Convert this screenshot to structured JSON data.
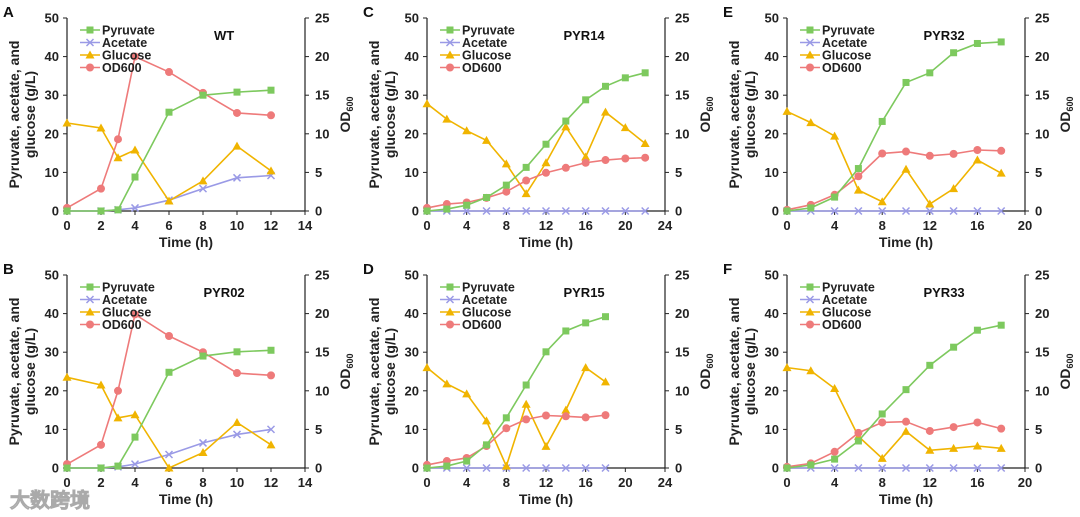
{
  "chart_data": [
    {
      "type": "line",
      "panel": "A",
      "title": "WT",
      "xlabel": "Time (h)",
      "ylabel": "Pyruvate, acetate, and glucose (g/L)",
      "y2label": "OD",
      "y2label_sub": "600",
      "xlim": [
        0,
        14
      ],
      "xticks": [
        0,
        2,
        4,
        6,
        8,
        10,
        12,
        14
      ],
      "ylim": [
        0,
        50
      ],
      "yticks": [
        0,
        10,
        20,
        30,
        40,
        50
      ],
      "y2lim": [
        0,
        25
      ],
      "y2ticks": [
        0,
        5,
        10,
        15,
        20,
        25
      ],
      "x": [
        0,
        2,
        3,
        4,
        6,
        8,
        10,
        12
      ],
      "series": [
        {
          "name": "Pyruvate",
          "axis": "left",
          "values": [
            0,
            0,
            0.3,
            8.8,
            25.6,
            30,
            30.8,
            31.3
          ]
        },
        {
          "name": "Acetate",
          "axis": "left",
          "values": [
            0,
            0,
            0.3,
            0.8,
            2.8,
            5.8,
            8.6,
            9.2
          ]
        },
        {
          "name": "Glucose",
          "axis": "left",
          "values": [
            22.8,
            21.5,
            13.8,
            15.8,
            2.6,
            7.8,
            16.8,
            10.4
          ]
        },
        {
          "name": "OD600",
          "axis": "right",
          "values": [
            0.4,
            2.9,
            9.3,
            20,
            18,
            15.3,
            12.7,
            12.4
          ]
        }
      ]
    },
    {
      "type": "line",
      "panel": "B",
      "title": "PYR02",
      "xlabel": "Time (h)",
      "ylabel": "Pyruvate, acetate, and glucose (g/L)",
      "y2label": "OD",
      "y2label_sub": "600",
      "xlim": [
        0,
        14
      ],
      "xticks": [
        0,
        2,
        4,
        6,
        8,
        10,
        12,
        14
      ],
      "ylim": [
        0,
        50
      ],
      "yticks": [
        0,
        10,
        20,
        30,
        40,
        50
      ],
      "y2lim": [
        0,
        25
      ],
      "y2ticks": [
        0,
        5,
        10,
        15,
        20,
        25
      ],
      "x": [
        0,
        2,
        3,
        4,
        6,
        8,
        10,
        12
      ],
      "series": [
        {
          "name": "Pyruvate",
          "axis": "left",
          "values": [
            0,
            0,
            0.5,
            8,
            24.8,
            29,
            30.1,
            30.5
          ]
        },
        {
          "name": "Acetate",
          "axis": "left",
          "values": [
            0,
            0,
            0.3,
            1,
            3.5,
            6.5,
            8.7,
            10
          ]
        },
        {
          "name": "Glucose",
          "axis": "left",
          "values": [
            23.5,
            21.5,
            13,
            13.8,
            0,
            4,
            11.8,
            6
          ]
        },
        {
          "name": "OD600",
          "axis": "right",
          "values": [
            0.5,
            3,
            10,
            19.9,
            17.1,
            15,
            12.3,
            12
          ]
        }
      ]
    },
    {
      "type": "line",
      "panel": "C",
      "title": "PYR14",
      "xlabel": "Time (h)",
      "ylabel": "Pyruvate, acetate, and glucose (g/L)",
      "y2label": "OD",
      "y2label_sub": "600",
      "xlim": [
        0,
        24
      ],
      "xticks": [
        0,
        4,
        8,
        12,
        16,
        20,
        24
      ],
      "ylim": [
        0,
        50
      ],
      "yticks": [
        0,
        10,
        20,
        30,
        40,
        50
      ],
      "y2lim": [
        0,
        25
      ],
      "y2ticks": [
        0,
        5,
        10,
        15,
        20,
        25
      ],
      "x": [
        0,
        2,
        4,
        6,
        8,
        10,
        12,
        14,
        16,
        18,
        20,
        22
      ],
      "series": [
        {
          "name": "Pyruvate",
          "axis": "left",
          "values": [
            0,
            0.5,
            1.5,
            3.5,
            6.7,
            11.3,
            17.3,
            23.3,
            28.8,
            32.3,
            34.5,
            35.8
          ]
        },
        {
          "name": "Acetate",
          "axis": "left",
          "values": [
            0,
            0,
            0,
            0,
            0,
            0,
            0,
            0,
            0,
            0,
            0,
            0
          ]
        },
        {
          "name": "Glucose",
          "axis": "left",
          "values": [
            27.8,
            23.8,
            20.8,
            18.3,
            12.2,
            4.5,
            12.5,
            21.8,
            14,
            25.6,
            21.6,
            17.5
          ]
        },
        {
          "name": "OD600",
          "axis": "right",
          "values": [
            0.4,
            0.9,
            1.1,
            1.7,
            2.5,
            3.95,
            4.95,
            5.6,
            6.25,
            6.6,
            6.8,
            6.9
          ]
        }
      ]
    },
    {
      "type": "line",
      "panel": "D",
      "title": "PYR15",
      "xlabel": "Time (h)",
      "ylabel": "Pyruvate, acetate, and glucose (g/L)",
      "y2label": "OD",
      "y2label_sub": "600",
      "xlim": [
        0,
        24
      ],
      "xticks": [
        0,
        4,
        8,
        12,
        16,
        20,
        24
      ],
      "ylim": [
        0,
        50
      ],
      "yticks": [
        0,
        10,
        20,
        30,
        40,
        50
      ],
      "y2lim": [
        0,
        25
      ],
      "y2ticks": [
        0,
        5,
        10,
        15,
        20,
        25
      ],
      "x": [
        0,
        2,
        4,
        6,
        8,
        10,
        12,
        14,
        16,
        18
      ],
      "series": [
        {
          "name": "Pyruvate",
          "axis": "left",
          "values": [
            0,
            0.5,
            1.8,
            6,
            13,
            21.5,
            30.1,
            35.5,
            37.6,
            39.2
          ]
        },
        {
          "name": "Acetate",
          "axis": "left",
          "values": [
            0,
            0,
            0,
            0,
            0,
            0,
            0,
            0,
            0,
            0
          ]
        },
        {
          "name": "Glucose",
          "axis": "left",
          "values": [
            26,
            21.8,
            19.2,
            12.2,
            0.5,
            16.5,
            5.6,
            15,
            26,
            22.3
          ]
        },
        {
          "name": "OD600",
          "axis": "right",
          "values": [
            0.4,
            0.9,
            1.3,
            2.85,
            5.15,
            6.3,
            6.8,
            6.7,
            6.55,
            6.85
          ]
        }
      ]
    },
    {
      "type": "line",
      "panel": "E",
      "title": "PYR32",
      "xlabel": "Time (h)",
      "ylabel": "Pyruvate, acetate, and glucose (g/L)",
      "y2label": "OD",
      "y2label_sub": "600",
      "xlim": [
        0,
        20
      ],
      "xticks": [
        0,
        4,
        8,
        12,
        16,
        20
      ],
      "ylim": [
        0,
        50
      ],
      "yticks": [
        0,
        10,
        20,
        30,
        40,
        50
      ],
      "y2lim": [
        0,
        25
      ],
      "y2ticks": [
        0,
        5,
        10,
        15,
        20,
        25
      ],
      "x": [
        0,
        2,
        4,
        6,
        8,
        10,
        12,
        14,
        16,
        18
      ],
      "series": [
        {
          "name": "Pyruvate",
          "axis": "left",
          "values": [
            0,
            0.8,
            3.6,
            11,
            23.2,
            33.3,
            35.8,
            41,
            43.4,
            43.8
          ]
        },
        {
          "name": "Acetate",
          "axis": "left",
          "values": [
            0,
            0,
            0,
            0,
            0,
            0,
            0,
            0,
            0,
            0
          ]
        },
        {
          "name": "Glucose",
          "axis": "left",
          "values": [
            25.8,
            22.9,
            19.4,
            5.4,
            2.4,
            10.8,
            1.8,
            5.8,
            13.2,
            9.8
          ]
        },
        {
          "name": "OD600",
          "axis": "right",
          "values": [
            0.15,
            0.8,
            2.1,
            4.5,
            7.45,
            7.7,
            7.15,
            7.4,
            7.9,
            7.8
          ]
        }
      ]
    },
    {
      "type": "line",
      "panel": "F",
      "title": "PYR33",
      "xlabel": "Time (h)",
      "ylabel": "Pyruvate, acetate, and glucose (g/L)",
      "y2label": "OD",
      "y2label_sub": "600",
      "xlim": [
        0,
        20
      ],
      "xticks": [
        0,
        4,
        8,
        12,
        16,
        20
      ],
      "ylim": [
        0,
        50
      ],
      "yticks": [
        0,
        10,
        20,
        30,
        40,
        50
      ],
      "y2lim": [
        0,
        25
      ],
      "y2ticks": [
        0,
        5,
        10,
        15,
        20,
        25
      ],
      "x": [
        0,
        2,
        4,
        6,
        8,
        10,
        12,
        14,
        16,
        18
      ],
      "series": [
        {
          "name": "Pyruvate",
          "axis": "left",
          "values": [
            0,
            0.8,
            2.3,
            7,
            14,
            20.3,
            26.6,
            31.3,
            35.7,
            37
          ]
        },
        {
          "name": "Acetate",
          "axis": "left",
          "values": [
            0,
            0,
            0,
            0,
            0,
            0,
            0,
            0,
            0,
            0
          ]
        },
        {
          "name": "Glucose",
          "axis": "left",
          "values": [
            26,
            25.2,
            20.6,
            8.2,
            2.5,
            9.5,
            4.6,
            5.1,
            5.7,
            5.1
          ]
        },
        {
          "name": "OD600",
          "axis": "right",
          "values": [
            0.15,
            0.6,
            2.1,
            4.55,
            5.9,
            6,
            4.8,
            5.3,
            5.9,
            5.1
          ]
        }
      ]
    }
  ],
  "legend_placement": "top-left",
  "colors": {
    "Pyruvate": "#7dc95e",
    "Acetate": "#9a9ae6",
    "Glucose": "#f0b400",
    "OD600": "#ee7a7a"
  },
  "markers": {
    "Pyruvate": "square",
    "Acetate": "x",
    "Glucose": "triangle",
    "OD600": "circle"
  },
  "ylabel_lines": [
    "Pyruvate, acetate, and",
    "glucose (g/L)"
  ],
  "watermark": "大数跨境"
}
